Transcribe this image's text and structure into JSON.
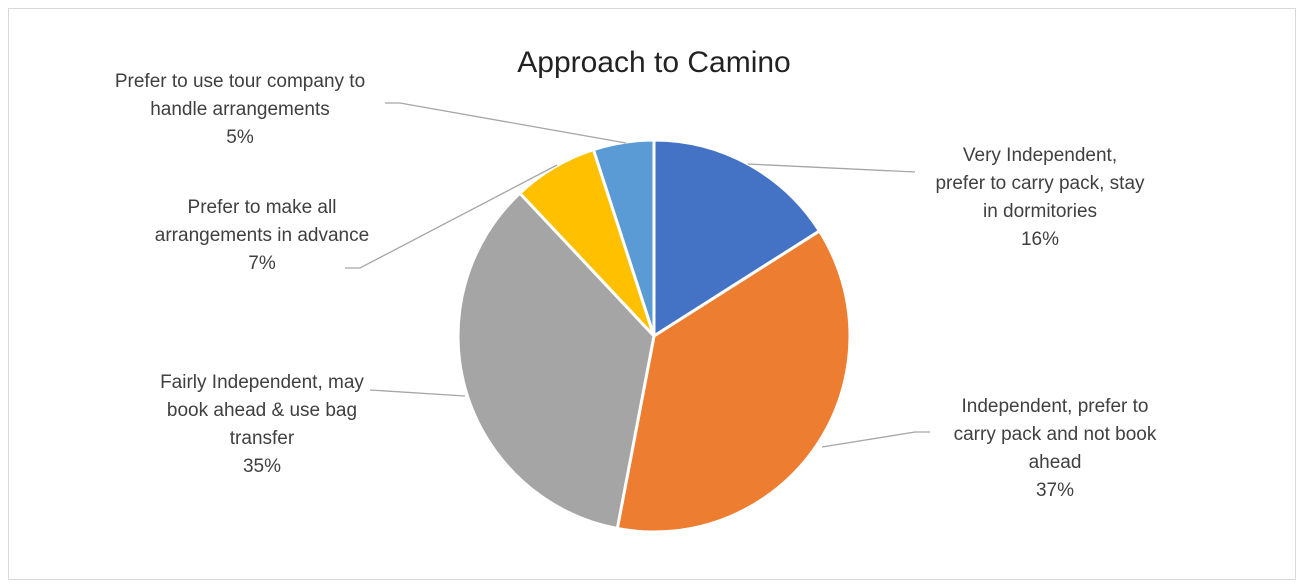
{
  "chart_data": {
    "type": "pie",
    "title": "Approach to Camino",
    "slices": [
      {
        "label_lines": [
          "Very Independent,",
          "prefer to carry pack, stay",
          "in dormitories"
        ],
        "pct_label": "16%",
        "value": 16,
        "color": "#4472C4"
      },
      {
        "label_lines": [
          "Independent, prefer to",
          "carry pack and not book",
          "ahead"
        ],
        "pct_label": "37%",
        "value": 37,
        "color": "#ED7D31"
      },
      {
        "label_lines": [
          "Fairly Independent, may",
          "book ahead & use bag",
          "transfer"
        ],
        "pct_label": "35%",
        "value": 35,
        "color": "#A5A5A5"
      },
      {
        "label_lines": [
          "Prefer to make all",
          "arrangements in advance"
        ],
        "pct_label": "7%",
        "value": 7,
        "color": "#FFC000"
      },
      {
        "label_lines": [
          "Prefer to use tour company to",
          "handle arrangements"
        ],
        "pct_label": "5%",
        "value": 5,
        "color": "#5B9BD5"
      }
    ],
    "legend": "none",
    "leader_color": "#a6a6a6"
  }
}
